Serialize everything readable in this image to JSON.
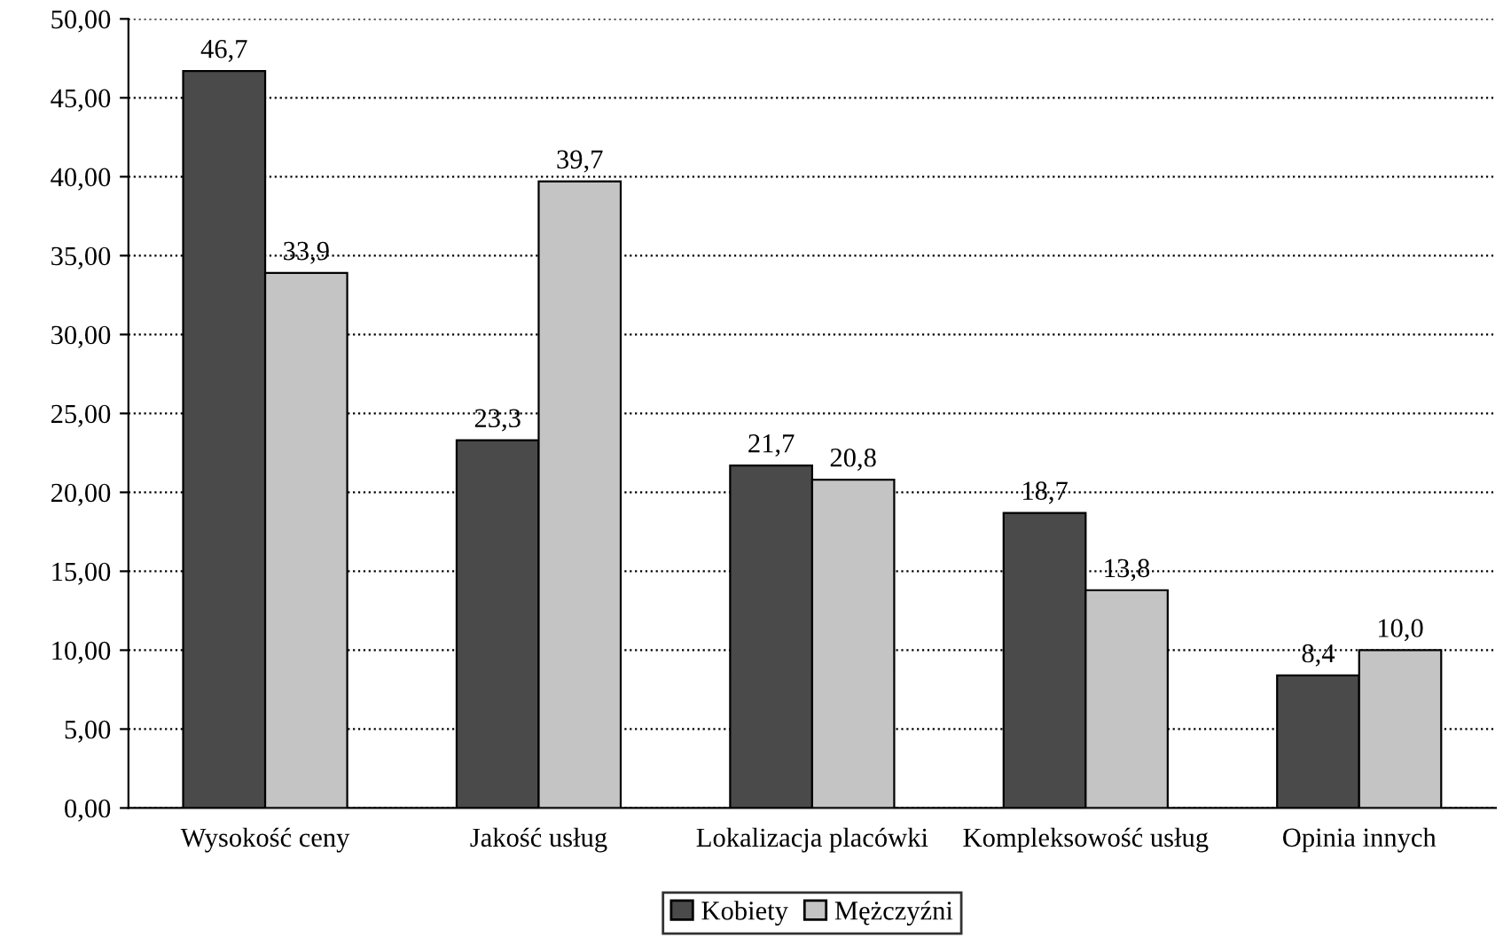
{
  "chart_data": {
    "type": "bar",
    "categories": [
      "Wysokość ceny",
      "Jakość usług",
      "Lokalizacja placówki",
      "Kompleksowość usług",
      "Opinia innych"
    ],
    "series": [
      {
        "name": "Kobiety",
        "color": "#4a4a4a",
        "values": [
          46.7,
          23.3,
          21.7,
          18.7,
          8.4
        ],
        "value_labels": [
          "46,7",
          "23,3",
          "21,7",
          "18,7",
          "8,4"
        ]
      },
      {
        "name": "Mężczyźni",
        "color": "#c4c4c4",
        "values": [
          33.9,
          39.7,
          20.8,
          13.8,
          10.0
        ],
        "value_labels": [
          "33,9",
          "39,7",
          "20,8",
          "13,8",
          "10,0"
        ]
      }
    ],
    "ylim": [
      0,
      50
    ],
    "yticks": [
      {
        "value": 0,
        "label": "0,00"
      },
      {
        "value": 5,
        "label": "5,00"
      },
      {
        "value": 10,
        "label": "10,00"
      },
      {
        "value": 15,
        "label": "15,00"
      },
      {
        "value": 20,
        "label": "20,00"
      },
      {
        "value": 25,
        "label": "25,00"
      },
      {
        "value": 30,
        "label": "30,00"
      },
      {
        "value": 35,
        "label": "35,00"
      },
      {
        "value": 40,
        "label": "40,00"
      },
      {
        "value": 45,
        "label": "45,00"
      },
      {
        "value": 50,
        "label": "50,00"
      }
    ],
    "grid": "y",
    "legend": "bottom"
  }
}
